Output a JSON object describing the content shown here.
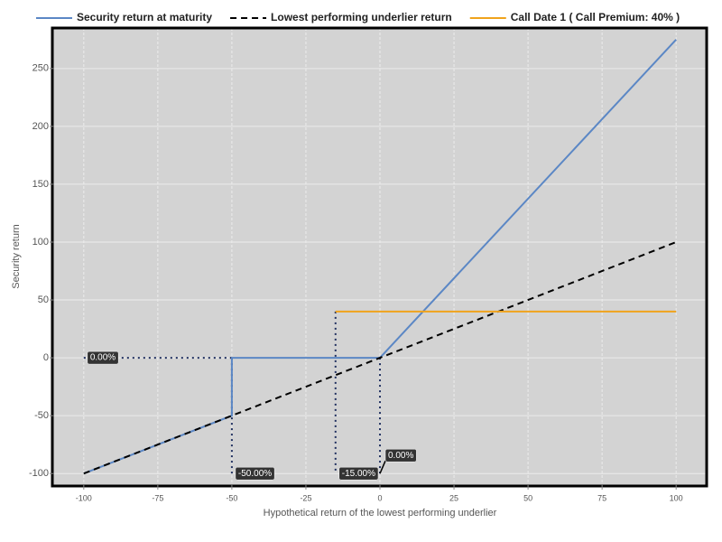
{
  "chart_data": {
    "type": "line",
    "x_label": "Hypothetical return of the lowest performing underlier",
    "y_label": "Security return",
    "xlim": [
      -110,
      110
    ],
    "ylim": [
      -110,
      285
    ],
    "xticks": [
      -100,
      -75,
      -50,
      -25,
      0,
      25,
      50,
      75,
      100
    ],
    "yticks": [
      -100,
      -50,
      0,
      50,
      100,
      150,
      200,
      250
    ],
    "grid": true,
    "series": [
      {
        "name": "Security return at maturity",
        "color": "#5b87c5",
        "line_style": "solid",
        "x": [
          -100,
          -50,
          -50,
          0,
          100
        ],
        "values": [
          -100,
          -50,
          0,
          0,
          275
        ]
      },
      {
        "name": "Lowest performing underlier return",
        "color": "#000000",
        "line_style": "dashed",
        "x": [
          -100,
          100
        ],
        "values": [
          -100,
          100
        ]
      },
      {
        "name": "Call Date 1 ( Call Premium: 40% )",
        "color": "#f0a31c",
        "line_style": "solid",
        "x": [
          -15,
          100
        ],
        "values": [
          40,
          40
        ]
      }
    ],
    "guides": [
      {
        "x": [
          -100,
          -50
        ],
        "values": [
          0,
          0
        ]
      },
      {
        "x": [
          -50,
          -50
        ],
        "values": [
          0,
          -100
        ]
      },
      {
        "x": [
          -15,
          -15
        ],
        "values": [
          40,
          -100
        ]
      },
      {
        "x": [
          0,
          0
        ],
        "values": [
          0,
          -100
        ]
      }
    ],
    "annotations": [
      {
        "text": "0.00%",
        "x": -100,
        "y": 0
      },
      {
        "text": "-50.00%",
        "x": -50,
        "y": -100
      },
      {
        "text": "-15.00%",
        "x": -15,
        "y": -100
      },
      {
        "text": "0.00%",
        "x": 0,
        "y": -100
      }
    ]
  }
}
